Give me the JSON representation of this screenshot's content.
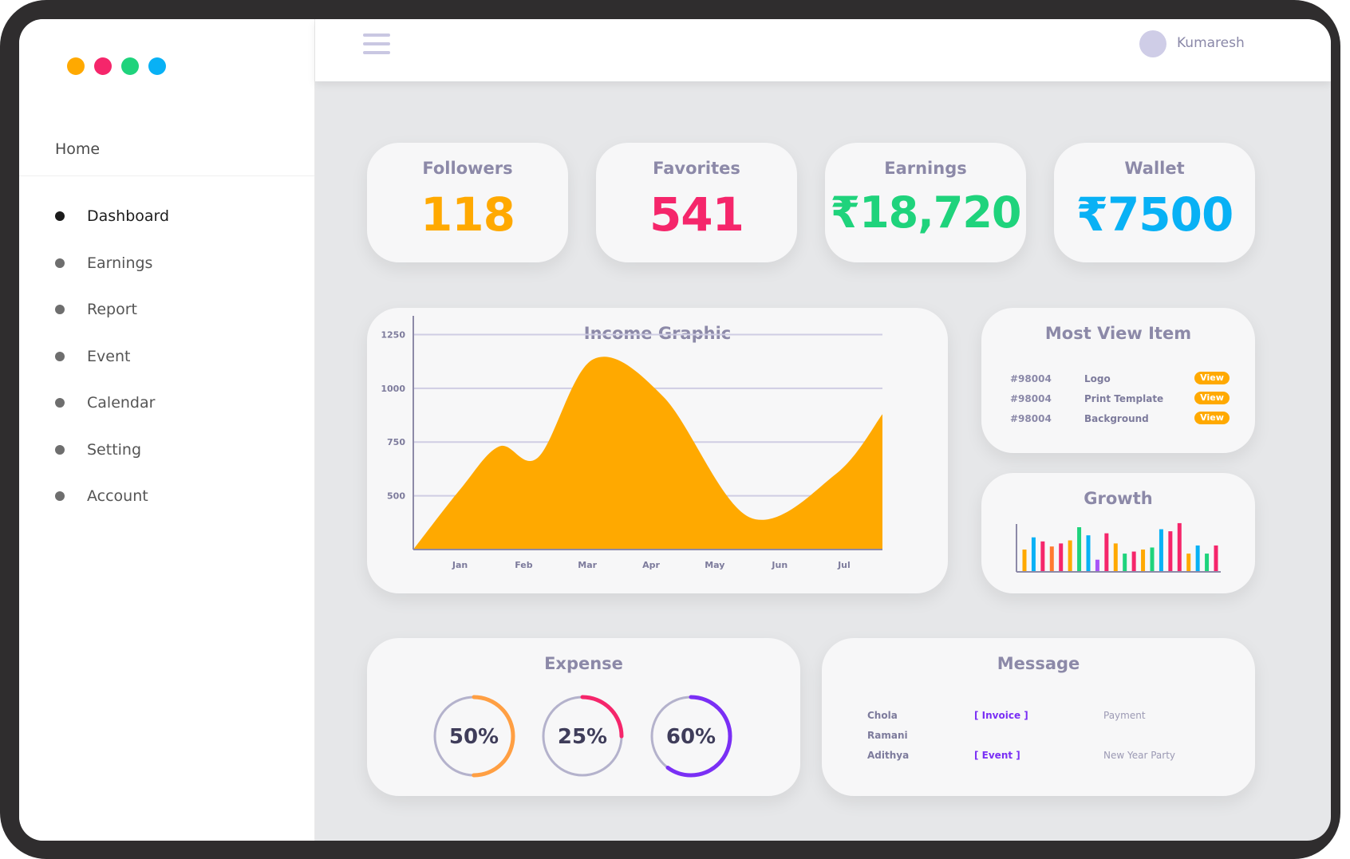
{
  "window_dots": [
    "#ffa900",
    "#f5266b",
    "#1fd37c",
    "#08b1f5"
  ],
  "sidebar": {
    "home_label": "Home",
    "items": [
      {
        "label": "Dashboard",
        "active": true
      },
      {
        "label": "Earnings"
      },
      {
        "label": "Report"
      },
      {
        "label": "Event"
      },
      {
        "label": "Calendar"
      },
      {
        "label": "Setting"
      },
      {
        "label": "Account"
      }
    ]
  },
  "header": {
    "menu_icon": "hamburger-icon",
    "user_name": "Kumaresh"
  },
  "stats": [
    {
      "title": "Followers",
      "value": "118",
      "color": "#ffa900"
    },
    {
      "title": "Favorites",
      "value": "541",
      "color": "#f5266b"
    },
    {
      "title": "Earnings",
      "value": "₹18,720",
      "color": "#1fd37c"
    },
    {
      "title": "Wallet",
      "value": "₹7500",
      "color": "#08b1f5"
    }
  ],
  "income": {
    "title": "Income Graphic",
    "chart_data": {
      "type": "area",
      "categories": [
        "Jan",
        "Feb",
        "Mar",
        "Apr",
        "May",
        "Jun",
        "Jul"
      ],
      "x": [
        0,
        0.6,
        1.1,
        1.6,
        2.3,
        3.2,
        4.3,
        5.4,
        6.0
      ],
      "y": [
        250,
        530,
        730,
        680,
        1135,
        960,
        400,
        600,
        880
      ],
      "ylim": [
        250,
        1300
      ],
      "yticks": [
        500,
        750,
        1000,
        1250
      ],
      "color": "#ffa900",
      "grid": true
    }
  },
  "most_view": {
    "title": "Most View Item",
    "rows": [
      {
        "id": "#98004",
        "name": "Logo",
        "action": "View"
      },
      {
        "id": "#98004",
        "name": "Print Template",
        "action": "View"
      },
      {
        "id": "#98004",
        "name": "Background",
        "action": "View"
      }
    ]
  },
  "growth": {
    "title": "Growth",
    "chart_data": {
      "type": "bar",
      "values": [
        22,
        34,
        30,
        25,
        28,
        31,
        44,
        36,
        12,
        38,
        28,
        18,
        20,
        22,
        24,
        42,
        40,
        48,
        18,
        26,
        18,
        26
      ],
      "colors": [
        "#ffa900",
        "#08b1f5",
        "#f5266b",
        "#ff7a2f",
        "#f5266b",
        "#ffa900",
        "#1fd37c",
        "#08b1f5",
        "#a855f7",
        "#f5266b",
        "#ffa900",
        "#1fd37c",
        "#f5266b",
        "#ffa900",
        "#1fd37c",
        "#08b1f5",
        "#f5266b",
        "#f5266b",
        "#ffa900",
        "#08b1f5",
        "#1fd37c",
        "#f5266b"
      ],
      "ylim": [
        0,
        55
      ]
    }
  },
  "expense": {
    "title": "Expense",
    "rings": [
      {
        "label": "50%",
        "value": 0.5,
        "color": "#ff9f43"
      },
      {
        "label": "25%",
        "value": 0.25,
        "color": "#f5266b"
      },
      {
        "label": "60%",
        "value": 0.6,
        "color": "#7a2ff5"
      }
    ],
    "track_color": "#b4b2cc"
  },
  "message": {
    "title": "Message",
    "rows": [
      {
        "name": "Chola",
        "tag": "[ Invoice ]",
        "note": "Payment"
      },
      {
        "name": "Ramani",
        "tag": "",
        "note": ""
      },
      {
        "name": "Adithya",
        "tag": "[ Event ]",
        "note": "New Year Party"
      }
    ]
  }
}
